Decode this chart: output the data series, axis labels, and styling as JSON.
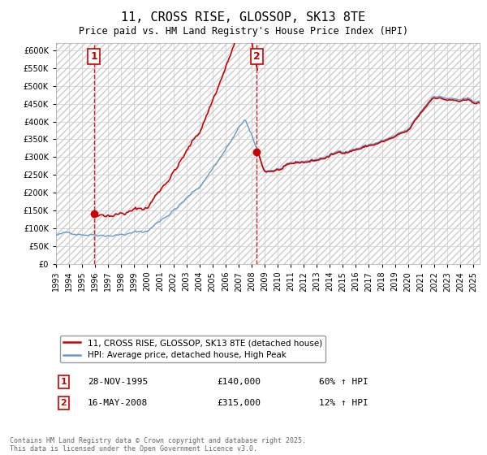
{
  "title": "11, CROSS RISE, GLOSSOP, SK13 8TE",
  "subtitle": "Price paid vs. HM Land Registry's House Price Index (HPI)",
  "legend_line1": "11, CROSS RISE, GLOSSOP, SK13 8TE (detached house)",
  "legend_line2": "HPI: Average price, detached house, High Peak",
  "purchase1_label": "1",
  "purchase1_date": "28-NOV-1995",
  "purchase1_price": "£140,000",
  "purchase1_hpi": "60% ↑ HPI",
  "purchase1_year": 1995.91,
  "purchase1_value": 140000,
  "purchase2_label": "2",
  "purchase2_date": "16-MAY-2008",
  "purchase2_price": "£315,000",
  "purchase2_hpi": "12% ↑ HPI",
  "purchase2_year": 2008.38,
  "purchase2_value": 315000,
  "hpi_color": "#6699cc",
  "price_color": "#cc0000",
  "vline_color": "#cc0000",
  "ylim_min": 0,
  "ylim_max": 620000,
  "ytick_step": 50000,
  "xmin": 1993,
  "xmax": 2025.5,
  "copyright_text": "Contains HM Land Registry data © Crown copyright and database right 2025.\nThis data is licensed under the Open Government Licence v3.0.",
  "background_color": "#ffffff",
  "grid_color": "#cccccc"
}
